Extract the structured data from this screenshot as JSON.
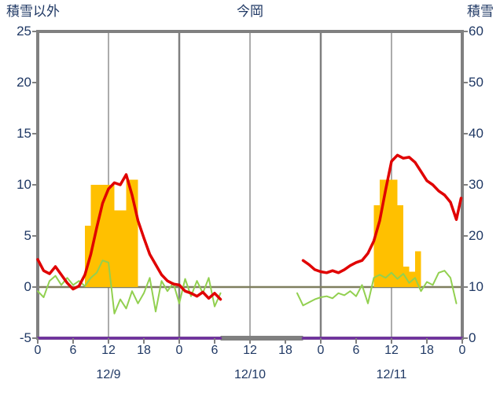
{
  "colors": {
    "text": "#1F3864",
    "frame": "#808080",
    "grid_major": "#808080",
    "grid_minor": "#909090",
    "zero_line": "#7F7F5F",
    "bar": "#FFC000",
    "red": "#E00000",
    "green": "#92D050",
    "purple": "#7030A0",
    "background": "#FFFFFF"
  },
  "chart_data": {
    "type": "composite",
    "title": "今岡",
    "left_axis": {
      "label": "積雪以外",
      "min": -5,
      "max": 25,
      "ticks": [
        25,
        20,
        15,
        10,
        5,
        0,
        -5
      ]
    },
    "right_axis": {
      "label": "積雪",
      "min": 0,
      "max": 60,
      "ticks": [
        60,
        50,
        40,
        30,
        20,
        10,
        0
      ]
    },
    "x_axis": {
      "total_hours": 72,
      "tick_step": 6,
      "tick_labels": [
        "0",
        "6",
        "12",
        "18",
        "0",
        "6",
        "12",
        "18",
        "0",
        "6",
        "12",
        "18",
        "0"
      ],
      "day_labels": [
        "12/9",
        "12/10",
        "12/11"
      ]
    },
    "grid": {
      "vertical_major_hours": [
        24,
        48
      ],
      "vertical_minor_hours": [
        12,
        36,
        60
      ],
      "zero_line_value": 0
    },
    "data_gap": {
      "from_hour": 31,
      "to_hour": 45
    },
    "series": [
      {
        "name": "precipitation-bars",
        "type": "bar",
        "axis": "left",
        "color_key": "bar",
        "points": [
          [
            8,
            6
          ],
          [
            9,
            10
          ],
          [
            10,
            10
          ],
          [
            11,
            10
          ],
          [
            12,
            10
          ],
          [
            13,
            7.5
          ],
          [
            14,
            7.5
          ],
          [
            15,
            10.5
          ],
          [
            16,
            10.5
          ],
          [
            57,
            8
          ],
          [
            58,
            10.5
          ],
          [
            59,
            10.5
          ],
          [
            60,
            10.5
          ],
          [
            61,
            8
          ],
          [
            62,
            2
          ],
          [
            63,
            1.5
          ],
          [
            64,
            3.5
          ]
        ]
      },
      {
        "name": "snow-depth-line",
        "type": "line",
        "axis": "right",
        "color_key": "purple",
        "width": 3.5,
        "segments": [
          [
            [
              0,
              0
            ],
            [
              31,
              0
            ]
          ],
          [
            [
              45,
              0
            ],
            [
              72,
              0
            ]
          ]
        ]
      },
      {
        "name": "green-line",
        "type": "line",
        "axis": "left",
        "color_key": "green",
        "width": 2,
        "segments": [
          [
            [
              0,
              -0.4
            ],
            [
              1,
              -1.0
            ],
            [
              2,
              0.6
            ],
            [
              3,
              1.1
            ],
            [
              4,
              0.2
            ],
            [
              5,
              0.9
            ],
            [
              6,
              0.2
            ],
            [
              7,
              0.6
            ],
            [
              8,
              0.1
            ],
            [
              9,
              0.9
            ],
            [
              10,
              1.4
            ],
            [
              11,
              2.6
            ],
            [
              12,
              2.4
            ],
            [
              13,
              -2.6
            ],
            [
              14,
              -1.2
            ],
            [
              15,
              -2.1
            ],
            [
              16,
              -0.4
            ],
            [
              17,
              -1.6
            ],
            [
              18,
              -0.6
            ],
            [
              19,
              0.9
            ],
            [
              20,
              -2.4
            ],
            [
              21,
              0.6
            ],
            [
              22,
              -0.4
            ],
            [
              23,
              0.4
            ],
            [
              24,
              -1.6
            ],
            [
              25,
              0.8
            ],
            [
              26,
              -0.9
            ],
            [
              27,
              0.6
            ],
            [
              28,
              -0.6
            ],
            [
              29,
              0.9
            ],
            [
              30,
              -1.9
            ],
            [
              31,
              -0.6
            ]
          ],
          [
            [
              44,
              -0.6
            ],
            [
              45,
              -1.8
            ],
            [
              46,
              -1.5
            ],
            [
              47,
              -1.2
            ],
            [
              48,
              -1.0
            ],
            [
              49,
              -0.9
            ],
            [
              50,
              -1.1
            ],
            [
              51,
              -0.6
            ],
            [
              52,
              -0.8
            ],
            [
              53,
              -0.4
            ],
            [
              54,
              -0.9
            ],
            [
              55,
              0.2
            ],
            [
              56,
              -1.6
            ],
            [
              57,
              0.9
            ],
            [
              58,
              1.2
            ],
            [
              59,
              0.9
            ],
            [
              60,
              1.4
            ],
            [
              61,
              0.8
            ],
            [
              62,
              1.3
            ],
            [
              63,
              0.4
            ],
            [
              64,
              0.9
            ],
            [
              65,
              -0.4
            ],
            [
              66,
              0.5
            ],
            [
              67,
              0.2
            ],
            [
              68,
              1.4
            ],
            [
              69,
              1.6
            ],
            [
              70,
              0.9
            ],
            [
              71,
              -1.6
            ]
          ]
        ]
      },
      {
        "name": "red-line",
        "type": "line",
        "axis": "left",
        "color_key": "red",
        "width": 3.5,
        "segments": [
          [
            [
              0,
              2.7
            ],
            [
              1,
              1.6
            ],
            [
              2,
              1.3
            ],
            [
              3,
              2.0
            ],
            [
              4,
              1.2
            ],
            [
              5,
              0.4
            ],
            [
              6,
              -0.2
            ],
            [
              7,
              0.1
            ],
            [
              8,
              1.2
            ],
            [
              9,
              3.2
            ],
            [
              10,
              5.8
            ],
            [
              11,
              8.2
            ],
            [
              12,
              9.6
            ],
            [
              13,
              10.2
            ],
            [
              14,
              10.0
            ],
            [
              15,
              11.0
            ],
            [
              16,
              9.0
            ],
            [
              17,
              6.5
            ],
            [
              18,
              4.8
            ],
            [
              19,
              3.2
            ],
            [
              20,
              2.2
            ],
            [
              21,
              1.2
            ],
            [
              22,
              0.6
            ],
            [
              23,
              0.3
            ],
            [
              24,
              0.2
            ],
            [
              25,
              -0.4
            ],
            [
              26,
              -0.6
            ],
            [
              27,
              -0.9
            ],
            [
              28,
              -0.5
            ],
            [
              29,
              -1.1
            ],
            [
              30,
              -0.6
            ],
            [
              31,
              -1.2
            ]
          ],
          [
            [
              45,
              2.6
            ],
            [
              46,
              2.2
            ],
            [
              47,
              1.7
            ],
            [
              48,
              1.5
            ],
            [
              49,
              1.4
            ],
            [
              50,
              1.6
            ],
            [
              51,
              1.4
            ],
            [
              52,
              1.7
            ],
            [
              53,
              2.1
            ],
            [
              54,
              2.4
            ],
            [
              55,
              2.6
            ],
            [
              56,
              3.3
            ],
            [
              57,
              4.5
            ],
            [
              58,
              6.5
            ],
            [
              59,
              9.5
            ],
            [
              60,
              12.3
            ],
            [
              61,
              12.9
            ],
            [
              62,
              12.6
            ],
            [
              63,
              12.7
            ],
            [
              64,
              12.2
            ],
            [
              65,
              11.3
            ],
            [
              66,
              10.4
            ],
            [
              67,
              10.0
            ],
            [
              68,
              9.4
            ],
            [
              69,
              9.0
            ],
            [
              70,
              8.3
            ],
            [
              71,
              6.6
            ],
            [
              71.8,
              8.7
            ]
          ]
        ]
      }
    ]
  }
}
